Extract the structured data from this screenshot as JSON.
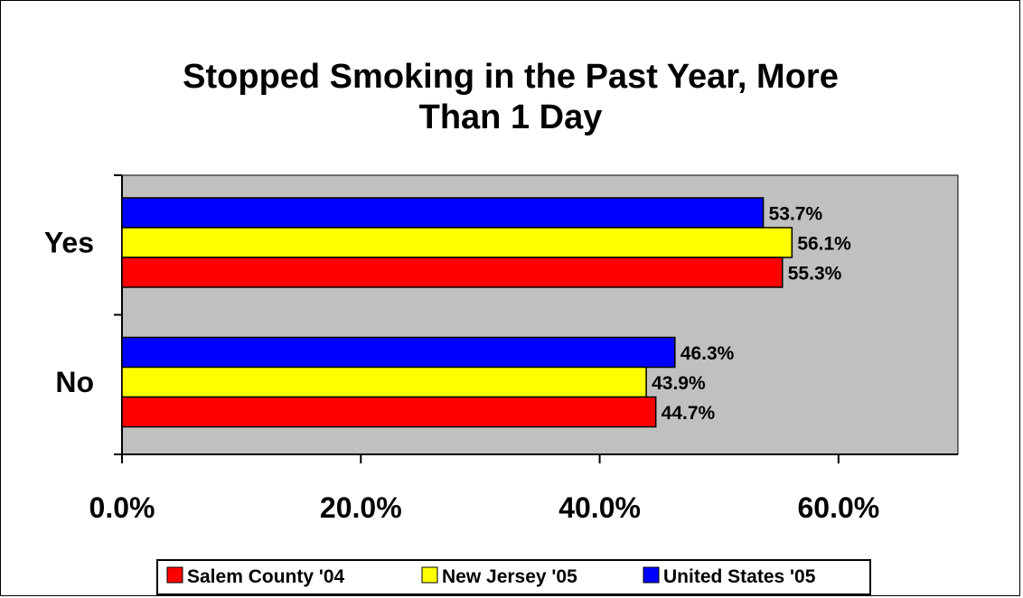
{
  "chart_data": {
    "type": "bar",
    "orientation": "horizontal",
    "title": "Stopped Smoking in the Past Year, More Than 1 Day",
    "title_lines": [
      "Stopped Smoking in the Past Year, More",
      "Than 1 Day"
    ],
    "categories": [
      "Yes",
      "No"
    ],
    "series": [
      {
        "name": "United States '05",
        "color": "#0000ff",
        "values": [
          53.7,
          46.3
        ]
      },
      {
        "name": "New Jersey '05",
        "color": "#ffff00",
        "values": [
          56.1,
          43.9
        ]
      },
      {
        "name": "Salem County '04",
        "color": "#ff0000",
        "values": [
          55.3,
          44.7
        ]
      }
    ],
    "data_labels": [
      [
        "53.7%",
        "46.3%"
      ],
      [
        "56.1%",
        "43.9%"
      ],
      [
        "55.3%",
        "44.7%"
      ]
    ],
    "x_ticks": [
      0,
      20,
      40,
      60
    ],
    "x_tick_labels": [
      "0.0%",
      "20.0%",
      "40.0%",
      "60.0%"
    ],
    "xlim": [
      0,
      70
    ],
    "xlabel": "",
    "ylabel": "",
    "grid": false,
    "plot_background": "#c0c0c0",
    "legend": {
      "position": "bottom",
      "order": [
        "Salem County '04",
        "New Jersey '05",
        "United States '05"
      ]
    }
  }
}
